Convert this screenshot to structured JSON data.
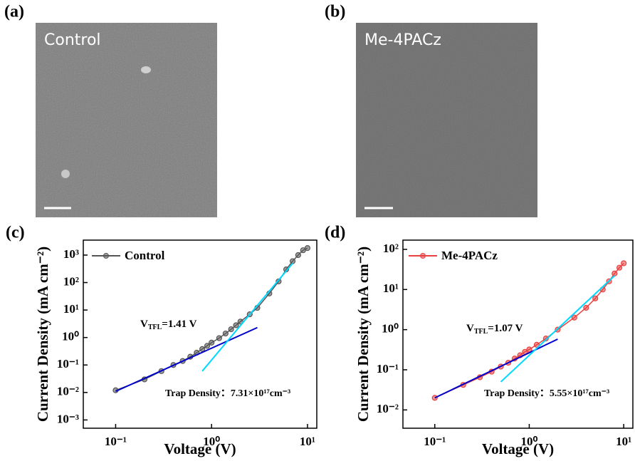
{
  "images": [
    {
      "label": "(a)",
      "caption": "Control"
    },
    {
      "label": "(b)",
      "caption": "Me-4PACz"
    }
  ],
  "chart_data": [
    {
      "type": "scatter",
      "panel_label": "(c)",
      "xlabel": "Voltage (V)",
      "ylabel": "Current Density (mA cm⁻²)",
      "xscale": "log",
      "yscale": "log",
      "xlim": [
        0.046,
        12.5
      ],
      "ylim": [
        0.0005,
        3500
      ],
      "xticks": [
        {
          "value": 0.1,
          "label": "10⁻¹"
        },
        {
          "value": 1,
          "label": "10⁰"
        },
        {
          "value": 10,
          "label": "10¹"
        }
      ],
      "yticks": [
        {
          "value": 0.001,
          "label": "10⁻³"
        },
        {
          "value": 0.01,
          "label": "10⁻²"
        },
        {
          "value": 0.1,
          "label": "10⁻¹"
        },
        {
          "value": 1,
          "label": "10⁰"
        },
        {
          "value": 10,
          "label": "10¹"
        },
        {
          "value": 100,
          "label": "10²"
        },
        {
          "value": 1000,
          "label": "10³"
        }
      ],
      "legend": "upper left",
      "series": [
        {
          "name": "Control",
          "color": "#555555",
          "marker": "circle",
          "x": [
            0.1,
            0.2,
            0.3,
            0.4,
            0.5,
            0.6,
            0.7,
            0.8,
            0.9,
            1.0,
            1.2,
            1.4,
            1.6,
            1.8,
            2,
            2.5,
            3,
            4,
            5,
            6,
            7,
            8,
            9,
            10
          ],
          "values": [
            0.012,
            0.03,
            0.06,
            0.1,
            0.14,
            0.2,
            0.28,
            0.38,
            0.5,
            0.65,
            0.95,
            1.4,
            2,
            2.8,
            3.8,
            7,
            12,
            40,
            110,
            300,
            600,
            1000,
            1500,
            1800
          ]
        },
        {
          "color": "#0000cc",
          "marker": "none",
          "x": [
            0.1,
            3
          ],
          "values": [
            0.011,
            2.3
          ]
        },
        {
          "color": "#00d8ff",
          "marker": "none",
          "x": [
            0.8,
            7
          ],
          "values": [
            0.06,
            500
          ]
        }
      ],
      "vtfl": {
        "symbol": "V",
        "sub": "TFL",
        "text": "=1.41 V"
      },
      "trap_density": "Trap Density：7.31×10¹⁷cm⁻³"
    },
    {
      "type": "scatter",
      "panel_label": "(d)",
      "xlabel": "Voltage (V)",
      "ylabel": "Current Density (mA cm⁻²)",
      "xscale": "log",
      "yscale": "log",
      "xlim": [
        0.046,
        12.5
      ],
      "ylim": [
        0.0035,
        170
      ],
      "xticks": [
        {
          "value": 0.1,
          "label": "10⁻¹"
        },
        {
          "value": 1,
          "label": "10⁰"
        },
        {
          "value": 10,
          "label": "10¹"
        }
      ],
      "yticks": [
        {
          "value": 0.01,
          "label": "10⁻²"
        },
        {
          "value": 0.1,
          "label": "10⁻¹"
        },
        {
          "value": 1,
          "label": "10⁰"
        },
        {
          "value": 10,
          "label": "10¹"
        },
        {
          "value": 100,
          "label": "10²"
        }
      ],
      "legend": "upper left",
      "series": [
        {
          "name": "Me-4PACz",
          "color": "#e8403f",
          "marker": "circle",
          "x": [
            0.1,
            0.2,
            0.3,
            0.4,
            0.5,
            0.6,
            0.7,
            0.8,
            0.9,
            1.0,
            1.2,
            1.5,
            2,
            3,
            4,
            5,
            6,
            7,
            8,
            9,
            10
          ],
          "values": [
            0.02,
            0.042,
            0.065,
            0.09,
            0.12,
            0.15,
            0.19,
            0.23,
            0.28,
            0.32,
            0.42,
            0.6,
            1,
            2,
            3.5,
            6,
            10,
            16,
            25,
            35,
            45
          ]
        },
        {
          "color": "#0000cc",
          "marker": "none",
          "x": [
            0.1,
            2
          ],
          "values": [
            0.02,
            0.58
          ]
        },
        {
          "color": "#00d8ff",
          "marker": "none",
          "x": [
            0.5,
            8
          ],
          "values": [
            0.05,
            22
          ]
        }
      ],
      "vtfl": {
        "symbol": "V",
        "sub": "TFL",
        "text": "=1.07 V"
      },
      "trap_density": "Trap Density：5.55×10¹⁷cm⁻³"
    }
  ]
}
